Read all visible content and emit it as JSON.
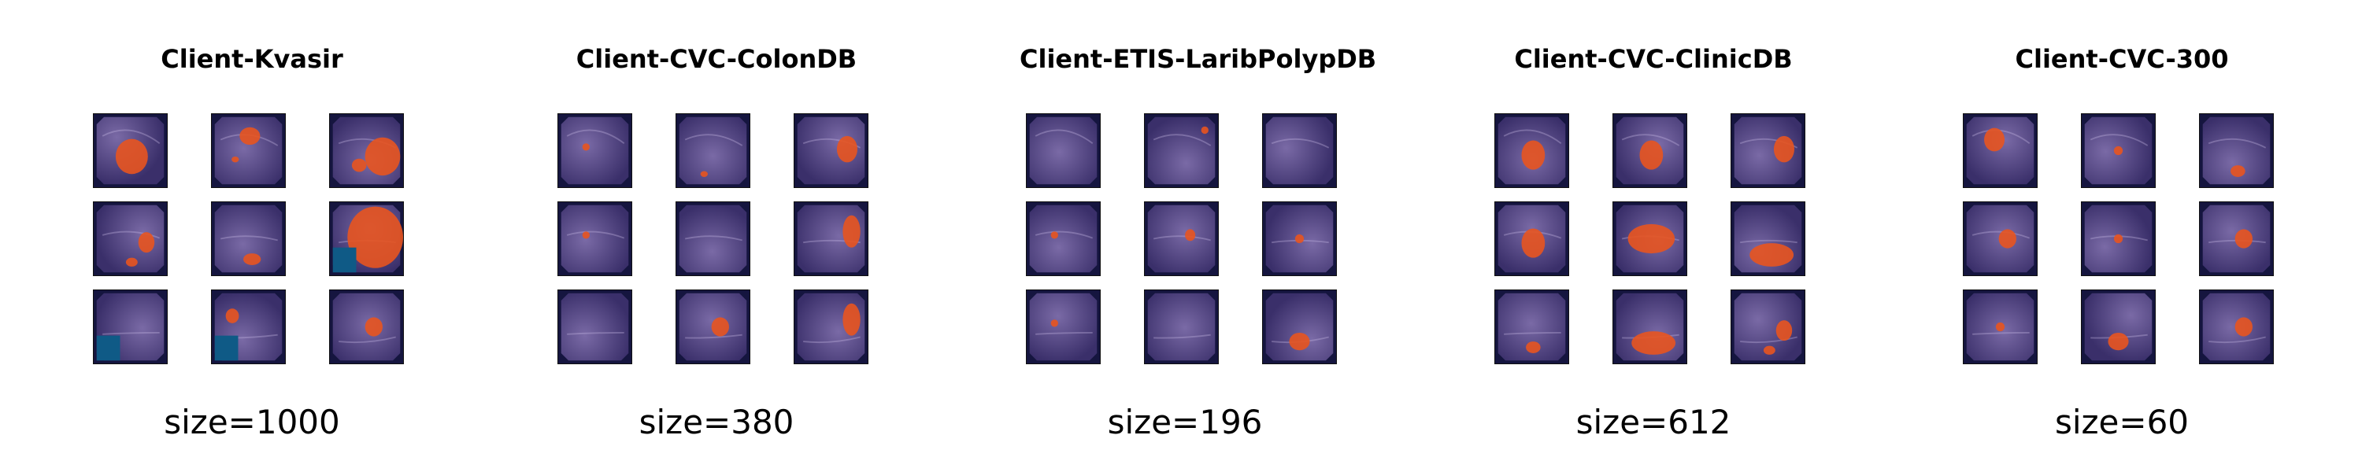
{
  "clients": [
    {
      "title": "Client-Kvasir",
      "size_label": "size=1000",
      "images": [
        {
          "polyp": "large-center"
        },
        {
          "polyp": "top-center"
        },
        {
          "polyp": "multi-right"
        },
        {
          "polyp": "right-small"
        },
        {
          "polyp": "bottom-center"
        },
        {
          "polyp": "full-right",
          "overlay_box": "bottom-left"
        },
        {
          "polyp": "none",
          "overlay_box": "bottom-left"
        },
        {
          "polyp": "left-small",
          "overlay_box": "bottom-left"
        },
        {
          "polyp": "center-small"
        }
      ]
    },
    {
      "title": "Client-CVC-ColonDB",
      "size_label": "size=380",
      "images": [
        {
          "polyp": "tiny-left"
        },
        {
          "polyp": "tiny-bottom"
        },
        {
          "polyp": "right-medium"
        },
        {
          "polyp": "tiny-left"
        },
        {
          "polyp": "none"
        },
        {
          "polyp": "right-tall"
        },
        {
          "polyp": "none"
        },
        {
          "polyp": "center-small"
        },
        {
          "polyp": "right-tall"
        }
      ]
    },
    {
      "title": "Client-ETIS-LaribPolypDB",
      "size_label": "size=196",
      "images": [
        {
          "polyp": "none"
        },
        {
          "polyp": "tiny-top-right"
        },
        {
          "polyp": "none"
        },
        {
          "polyp": "tiny-left"
        },
        {
          "polyp": "small-right"
        },
        {
          "polyp": "tiny-center"
        },
        {
          "polyp": "tiny-left"
        },
        {
          "polyp": "none"
        },
        {
          "polyp": "bottom-medium"
        }
      ]
    },
    {
      "title": "Client-CVC-ClinicDB",
      "size_label": "size=612",
      "images": [
        {
          "polyp": "center-medium"
        },
        {
          "polyp": "center-medium"
        },
        {
          "polyp": "right-medium"
        },
        {
          "polyp": "center-medium"
        },
        {
          "polyp": "large-diagonal"
        },
        {
          "polyp": "bottom-wide"
        },
        {
          "polyp": "bottom-small"
        },
        {
          "polyp": "bottom-wide"
        },
        {
          "polyp": "right-small"
        }
      ]
    },
    {
      "title": "Client-CVC-300",
      "size_label": "size=60",
      "images": [
        {
          "polyp": "top-left-medium"
        },
        {
          "polyp": "tiny-center"
        },
        {
          "polyp": "bottom-small"
        },
        {
          "polyp": "center-small"
        },
        {
          "polyp": "tiny-center"
        },
        {
          "polyp": "center-small"
        },
        {
          "polyp": "tiny-center"
        },
        {
          "polyp": "bottom-medium"
        },
        {
          "polyp": "center-small"
        }
      ]
    }
  ],
  "colors": {
    "frame": "#15153f",
    "tissue_light": "#7a6aa6",
    "tissue_dark": "#3a2f6a",
    "polyp": "#e8541f",
    "overlay_box": "#0f5a86"
  }
}
